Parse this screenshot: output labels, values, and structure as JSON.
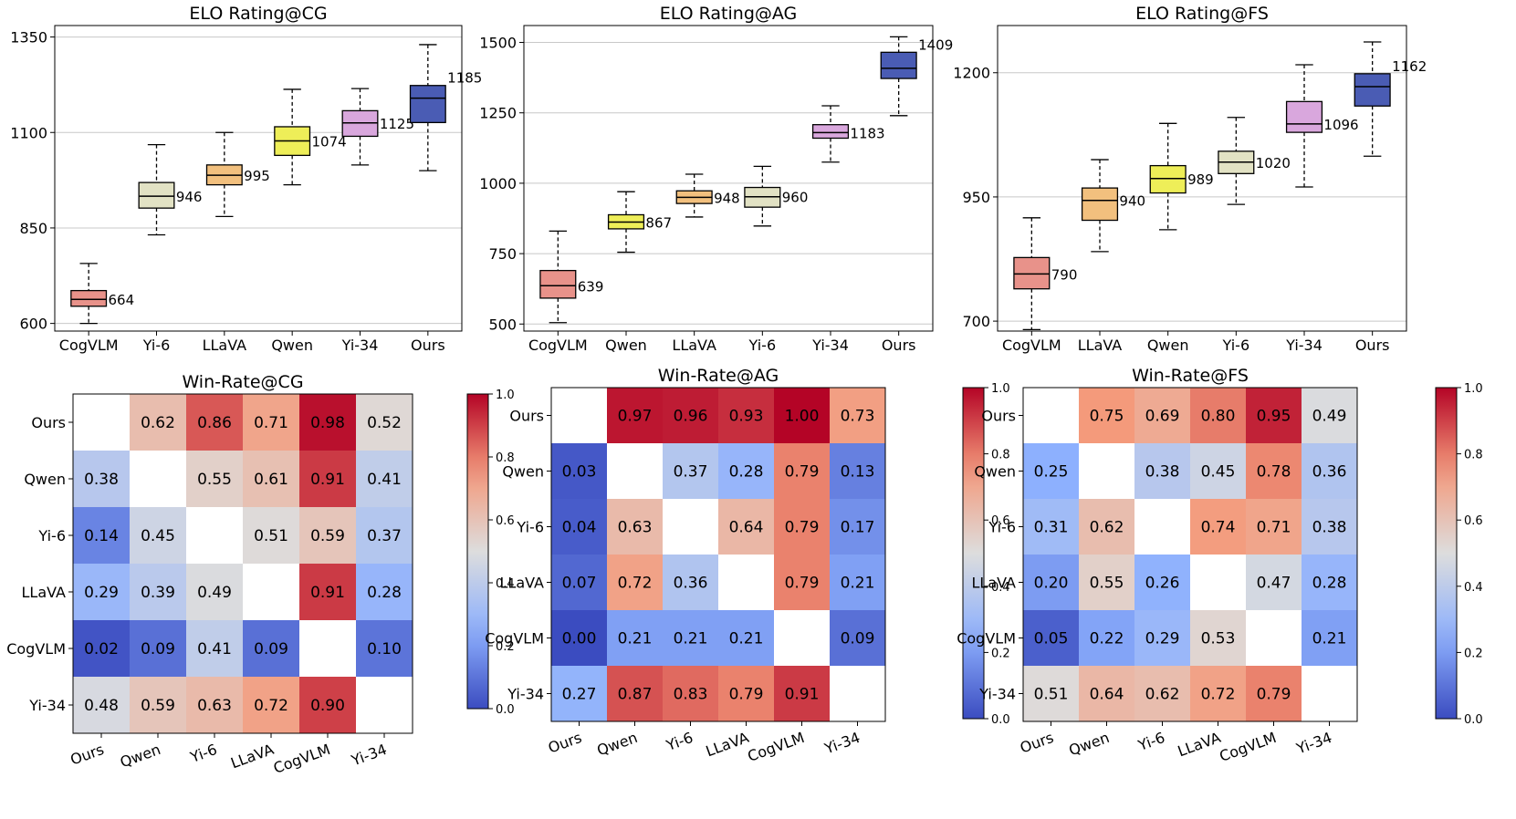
{
  "chart_data": [
    {
      "type": "box",
      "title": "ELO Rating@CG",
      "ylim": [
        580,
        1380
      ],
      "yticks": [
        600,
        850,
        1100,
        1350
      ],
      "grid": true,
      "categories": [
        "CogVLM",
        "Yi-6",
        "LLaVA",
        "Qwen",
        "Yi-34",
        "Ours"
      ],
      "boxes": [
        {
          "min": 600,
          "q1": 645,
          "median": 663,
          "q3": 686,
          "max": 757,
          "label": "664"
        },
        {
          "min": 832,
          "q1": 902,
          "median": 933,
          "q3": 969,
          "max": 1068,
          "label": "946"
        },
        {
          "min": 880,
          "q1": 963,
          "median": 988,
          "q3": 1015,
          "max": 1100,
          "label": "995"
        },
        {
          "min": 963,
          "q1": 1040,
          "median": 1078,
          "q3": 1115,
          "max": 1213,
          "label": "1074"
        },
        {
          "min": 1015,
          "q1": 1090,
          "median": 1125,
          "q3": 1157,
          "max": 1215,
          "label": "1125"
        },
        {
          "min": 1000,
          "q1": 1126,
          "median": 1190,
          "q3": 1223,
          "max": 1330,
          "label": "1185"
        }
      ],
      "colors": [
        "#e8928a",
        "#e2e2c4",
        "#f2c07e",
        "#eeee58",
        "#d9a7dd",
        "#4a5cb4"
      ]
    },
    {
      "type": "box",
      "title": "ELO Rating@AG",
      "ylim": [
        475,
        1560
      ],
      "yticks": [
        500,
        750,
        1000,
        1250,
        1500
      ],
      "grid": true,
      "categories": [
        "CogVLM",
        "Qwen",
        "LLaVA",
        "Yi-6",
        "Yi-34",
        "Ours"
      ],
      "boxes": [
        {
          "min": 505,
          "q1": 592,
          "median": 636,
          "q3": 690,
          "max": 830,
          "label": "639"
        },
        {
          "min": 755,
          "q1": 838,
          "median": 862,
          "q3": 888,
          "max": 970,
          "label": "867"
        },
        {
          "min": 880,
          "q1": 928,
          "median": 950,
          "q3": 973,
          "max": 1032,
          "label": "948"
        },
        {
          "min": 848,
          "q1": 915,
          "median": 952,
          "q3": 985,
          "max": 1060,
          "label": "960"
        },
        {
          "min": 1075,
          "q1": 1160,
          "median": 1180,
          "q3": 1208,
          "max": 1275,
          "label": "1183"
        },
        {
          "min": 1240,
          "q1": 1372,
          "median": 1408,
          "q3": 1465,
          "max": 1520,
          "label": "1409"
        }
      ],
      "colors": [
        "#e8928a",
        "#eeee58",
        "#f2c07e",
        "#e2e2c4",
        "#d9a7dd",
        "#4a5cb4"
      ]
    },
    {
      "type": "box",
      "title": "ELO Rating@FS",
      "ylim": [
        680,
        1295
      ],
      "yticks": [
        700,
        950,
        1200
      ],
      "grid": true,
      "categories": [
        "CogVLM",
        "LLaVA",
        "Qwen",
        "Yi-6",
        "Yi-34",
        "Ours"
      ],
      "boxes": [
        {
          "min": 683,
          "q1": 765,
          "median": 795,
          "q3": 828,
          "max": 908,
          "label": "790"
        },
        {
          "min": 840,
          "q1": 903,
          "median": 943,
          "q3": 968,
          "max": 1025,
          "label": "940"
        },
        {
          "min": 884,
          "q1": 958,
          "median": 987,
          "q3": 1013,
          "max": 1098,
          "label": "989"
        },
        {
          "min": 935,
          "q1": 997,
          "median": 1020,
          "q3": 1042,
          "max": 1110,
          "label": "1020"
        },
        {
          "min": 970,
          "q1": 1080,
          "median": 1097,
          "q3": 1142,
          "max": 1216,
          "label": "1096"
        },
        {
          "min": 1032,
          "q1": 1133,
          "median": 1172,
          "q3": 1198,
          "max": 1262,
          "label": "1162"
        }
      ],
      "colors": [
        "#e8928a",
        "#f2c07e",
        "#eeee58",
        "#e2e2c4",
        "#d9a7dd",
        "#4a5cb4"
      ]
    },
    {
      "type": "heatmap",
      "title": "Win-Rate@CG",
      "rows": [
        "Ours",
        "Qwen",
        "Yi-6",
        "LLaVA",
        "CogVLM",
        "Yi-34"
      ],
      "cols": [
        "Ours",
        "Qwen",
        "Yi-6",
        "LLaVA",
        "CogVLM",
        "Yi-34"
      ],
      "values": [
        [
          null,
          0.62,
          0.86,
          0.71,
          0.98,
          0.52
        ],
        [
          0.38,
          null,
          0.55,
          0.61,
          0.91,
          0.41
        ],
        [
          0.14,
          0.45,
          null,
          0.51,
          0.59,
          0.37
        ],
        [
          0.29,
          0.39,
          0.49,
          null,
          0.91,
          0.28
        ],
        [
          0.02,
          0.09,
          0.41,
          0.09,
          null,
          0.1
        ],
        [
          0.48,
          0.59,
          0.63,
          0.72,
          0.9,
          null
        ]
      ],
      "colorbar": {
        "min": 0.0,
        "max": 1.0,
        "ticks": [
          "0.0",
          "0.2",
          "0.4",
          "0.6",
          "0.8",
          "1.0"
        ],
        "colormap": "coolwarm"
      }
    },
    {
      "type": "heatmap",
      "title": "Win-Rate@AG",
      "rows": [
        "Ours",
        "Qwen",
        "Yi-6",
        "LLaVA",
        "CogVLM",
        "Yi-34"
      ],
      "cols": [
        "Ours",
        "Qwen",
        "Yi-6",
        "LLaVA",
        "CogVLM",
        "Yi-34"
      ],
      "values": [
        [
          null,
          0.97,
          0.96,
          0.93,
          1.0,
          0.73
        ],
        [
          0.03,
          null,
          0.37,
          0.28,
          0.79,
          0.13
        ],
        [
          0.04,
          0.63,
          null,
          0.64,
          0.79,
          0.17
        ],
        [
          0.07,
          0.72,
          0.36,
          null,
          0.79,
          0.21
        ],
        [
          0.0,
          0.21,
          0.21,
          0.21,
          null,
          0.09
        ],
        [
          0.27,
          0.87,
          0.83,
          0.79,
          0.91,
          null
        ]
      ],
      "colorbar": {
        "min": 0.0,
        "max": 1.0,
        "ticks": [
          "0.0",
          "0.2",
          "0.4",
          "0.6",
          "0.8",
          "1.0"
        ],
        "colormap": "coolwarm"
      }
    },
    {
      "type": "heatmap",
      "title": "Win-Rate@FS",
      "rows": [
        "Ours",
        "Qwen",
        "Yi-6",
        "LLaVA",
        "CogVLM",
        "Yi-34"
      ],
      "cols": [
        "Ours",
        "Qwen",
        "Yi-6",
        "LLaVA",
        "CogVLM",
        "Yi-34"
      ],
      "values": [
        [
          null,
          0.75,
          0.69,
          0.8,
          0.95,
          0.49
        ],
        [
          0.25,
          null,
          0.38,
          0.45,
          0.78,
          0.36
        ],
        [
          0.31,
          0.62,
          null,
          0.74,
          0.71,
          0.38
        ],
        [
          0.2,
          0.55,
          0.26,
          null,
          0.47,
          0.28
        ],
        [
          0.05,
          0.22,
          0.29,
          0.53,
          null,
          0.21
        ],
        [
          0.51,
          0.64,
          0.62,
          0.72,
          0.79,
          null
        ]
      ],
      "colorbar": {
        "min": 0.0,
        "max": 1.0,
        "ticks": [
          "0.0",
          "0.2",
          "0.4",
          "0.6",
          "0.8",
          "1.0"
        ],
        "colormap": "coolwarm"
      }
    }
  ]
}
